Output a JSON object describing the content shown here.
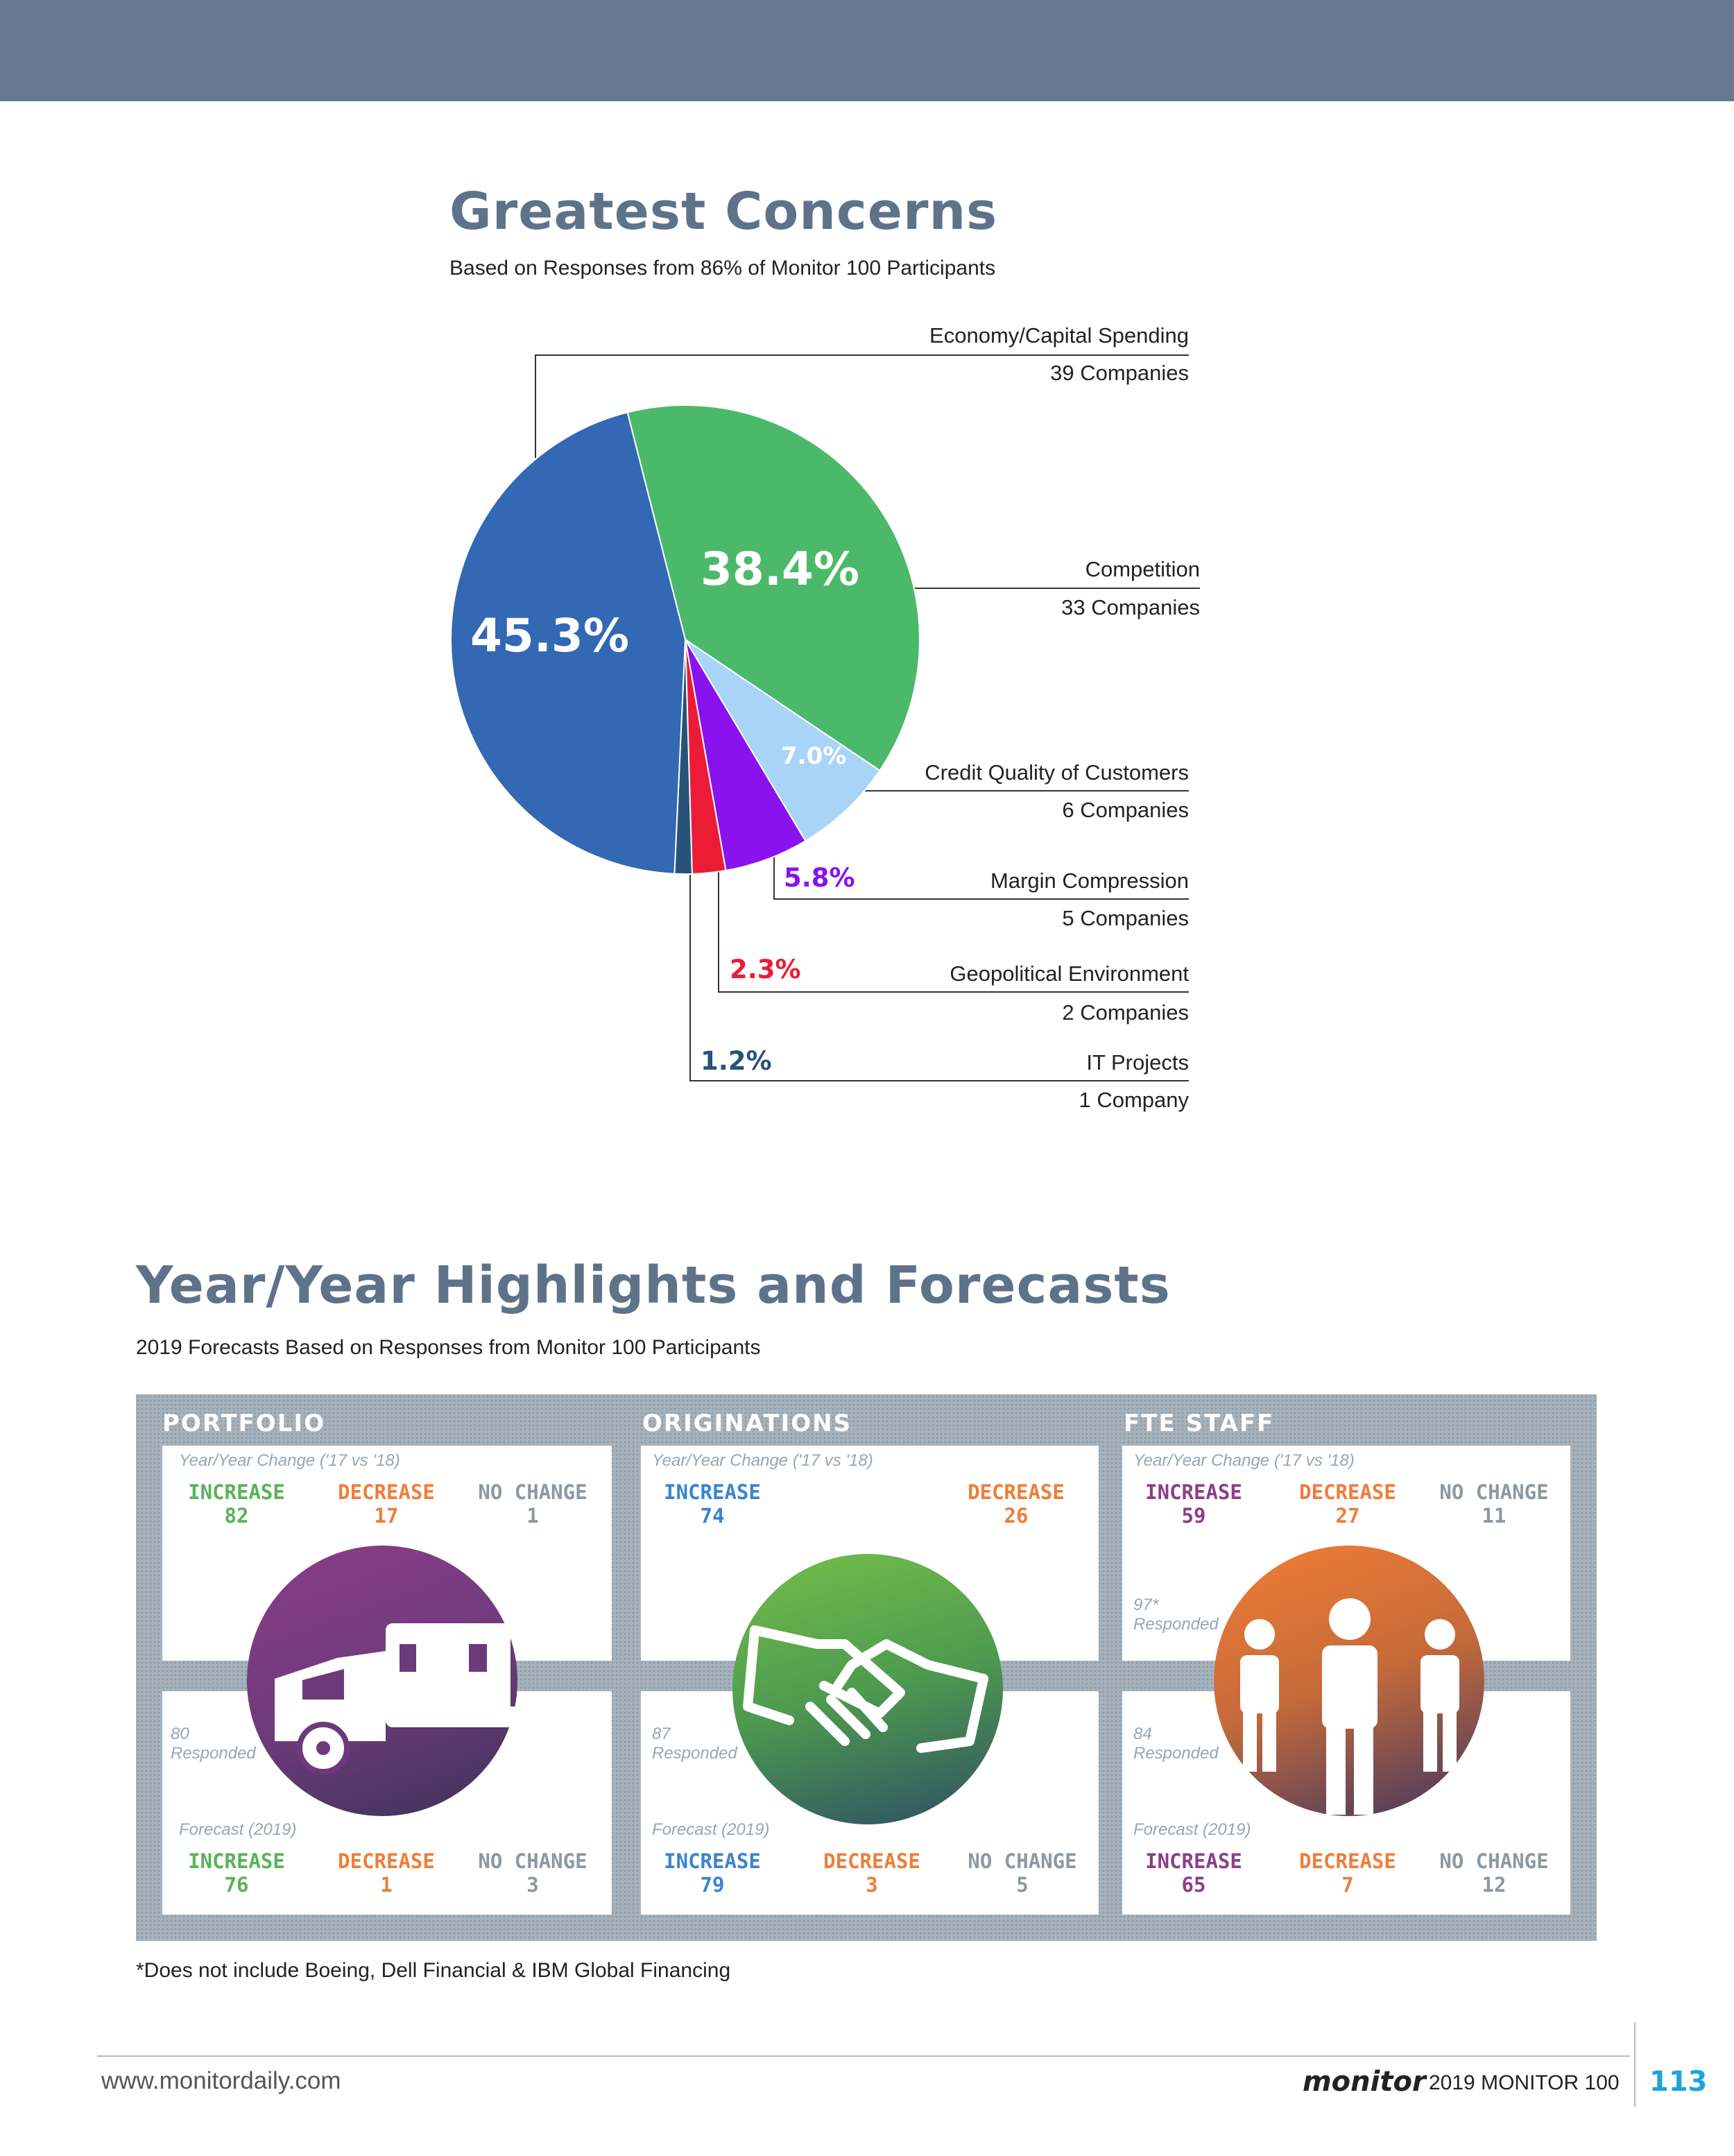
{
  "concerns": {
    "title": "Greatest Concerns",
    "subtitle": "Based on Responses from 86% of Monitor 100 Participants"
  },
  "chart_data": {
    "type": "pie",
    "title": "Greatest Concerns",
    "subtitle": "Based on Responses from 86% of Monitor 100 Participants",
    "slices": [
      {
        "name": "Economy/Capital Spending",
        "companies": "39 Companies",
        "percent": 45.3,
        "label": "45.3%",
        "color": "#3268b4"
      },
      {
        "name": "Competition",
        "companies": "33 Companies",
        "percent": 38.4,
        "label": "38.4%",
        "color": "#4cb96a"
      },
      {
        "name": "Credit Quality of Customers",
        "companies": "6 Companies",
        "percent": 7.0,
        "label": "7.0%",
        "color": "#a8d4f7"
      },
      {
        "name": "Margin Compression",
        "companies": "5 Companies",
        "percent": 5.8,
        "label": "5.8%",
        "color": "#8a12ee"
      },
      {
        "name": "Geopolitical Environment",
        "companies": "2 Companies",
        "percent": 2.3,
        "label": "2.3%",
        "color": "#ec1c36"
      },
      {
        "name": "IT Projects",
        "companies": "1 Company",
        "percent": 1.2,
        "label": "1.2%",
        "color": "#27527a"
      }
    ]
  },
  "highlights": {
    "title": "Year/Year Highlights and Forecasts",
    "subtitle": "2019 Forecasts Based on Responses from Monitor 100 Participants",
    "footnote": "*Does not include Boeing, Dell Financial & IBM Global Financing",
    "sections": [
      {
        "title": "PORTFOLIO",
        "yoy_label": "Year/Year Change ('17 vs '18)",
        "yoy": [
          {
            "k": "INCREASE",
            "v": "82"
          },
          {
            "k": "DECREASE",
            "v": "17"
          },
          {
            "k": "NO CHANGE",
            "v": "1"
          }
        ],
        "responded": "80",
        "responded_label": "Responded",
        "forecast_label": "Forecast (2019)",
        "forecast": [
          {
            "k": "INCREASE",
            "v": "76"
          },
          {
            "k": "DECREASE",
            "v": "1"
          },
          {
            "k": "NO CHANGE",
            "v": "3"
          }
        ]
      },
      {
        "title": "ORIGINATIONS",
        "yoy_label": "Year/Year Change ('17 vs '18)",
        "yoy": [
          {
            "k": "INCREASE",
            "v": "74"
          },
          {
            "k": "DECREASE",
            "v": "26"
          }
        ],
        "responded": "87",
        "responded_label": "Responded",
        "forecast_label": "Forecast (2019)",
        "forecast": [
          {
            "k": "INCREASE",
            "v": "79"
          },
          {
            "k": "DECREASE",
            "v": "3"
          },
          {
            "k": "NO CHANGE",
            "v": "5"
          }
        ]
      },
      {
        "title": "FTE STAFF",
        "yoy_label": "Year/Year Change ('17 vs '18)",
        "yoy": [
          {
            "k": "INCREASE",
            "v": "59"
          },
          {
            "k": "DECREASE",
            "v": "27"
          },
          {
            "k": "NO CHANGE",
            "v": "11"
          }
        ],
        "responded_top": "97*",
        "responded_top_label": "Responded",
        "responded": "84",
        "responded_label": "Responded",
        "forecast_label": "Forecast (2019)",
        "forecast": [
          {
            "k": "INCREASE",
            "v": "65"
          },
          {
            "k": "DECREASE",
            "v": "7"
          },
          {
            "k": "NO CHANGE",
            "v": "12"
          }
        ]
      }
    ]
  },
  "footer": {
    "url": "www.monitordaily.com",
    "brand": "monitor",
    "edition": "2019 MONITOR 100",
    "page": "113"
  }
}
